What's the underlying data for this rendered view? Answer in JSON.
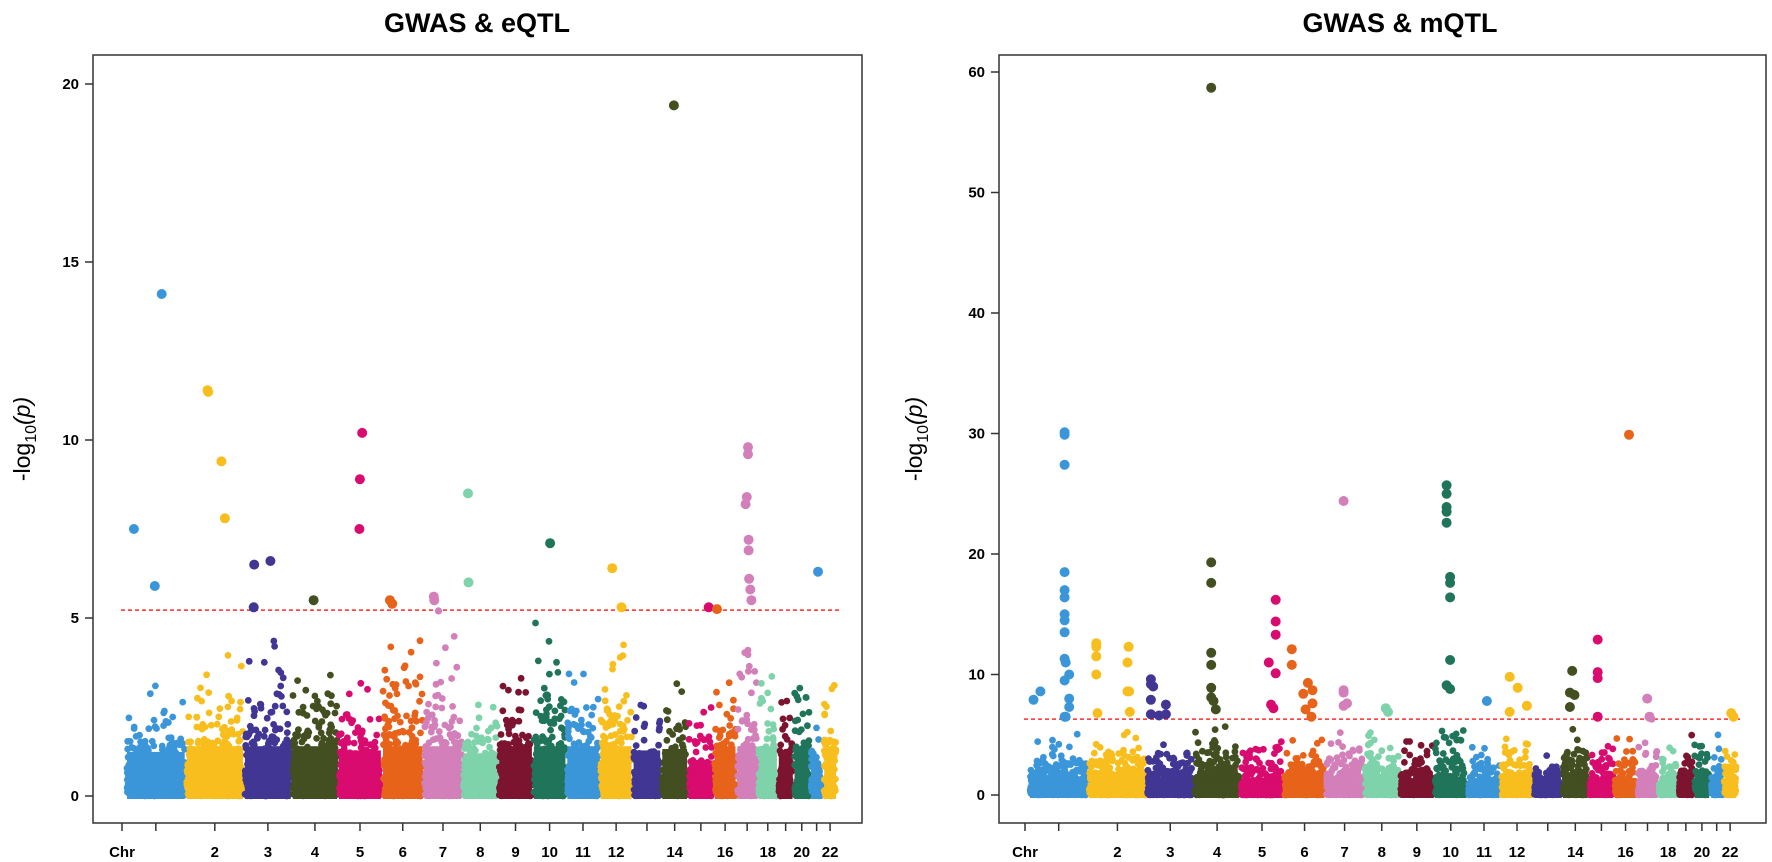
{
  "colors": [
    "#3b96d9",
    "#f7be1d",
    "#413693",
    "#434f20",
    "#d90b6f",
    "#e8631a",
    "#d37fba",
    "#7fd3aa",
    "#7c1430",
    "#1f7459"
  ],
  "threshold_color": "#ff2a2a",
  "chart_data": [
    {
      "type": "scatter",
      "subtype": "manhattan",
      "title": "GWAS & eQTL",
      "ylabel_main": "-log",
      "ylabel_sub": "10",
      "ylabel_tail": "(p)",
      "xlabel": "Chr",
      "ylim": [
        0,
        20.8
      ],
      "yticks": [
        "0",
        "5",
        "10",
        "15",
        "20"
      ],
      "ytick_values": [
        0,
        5,
        10,
        15,
        20
      ],
      "xtick_labels": [
        "Chr",
        "",
        "2",
        "3",
        "4",
        "5",
        "6",
        "7",
        "8",
        "9",
        "10",
        "11",
        "12",
        "",
        "14",
        "",
        "16",
        "",
        "18",
        "",
        "20",
        "",
        "22"
      ],
      "threshold": 5.22,
      "background_max": [
        3.1,
        4.0,
        4.4,
        3.9,
        3.2,
        4.6,
        4.6,
        3.0,
        3.9,
        4.9,
        3.9,
        5.0,
        3.2,
        3.3,
        2.5,
        4.4,
        4.6,
        3.7,
        3.0,
        4.2,
        2.2,
        3.9
      ],
      "peaks": [
        [
          1,
          30,
          7.5
        ],
        [
          1,
          150,
          14.1
        ],
        [
          1,
          120,
          5.9
        ],
        [
          2,
          90,
          11.4
        ],
        [
          2,
          93,
          11.35
        ],
        [
          2,
          150,
          9.4
        ],
        [
          2,
          165,
          7.8
        ],
        [
          3,
          40,
          6.5
        ],
        [
          3,
          38,
          5.3
        ],
        [
          3,
          110,
          6.6
        ],
        [
          4,
          90,
          5.5
        ],
        [
          5,
          100,
          10.2
        ],
        [
          5,
          90,
          8.9
        ],
        [
          5,
          88,
          7.5
        ],
        [
          6,
          30,
          5.5
        ],
        [
          6,
          40,
          5.4
        ],
        [
          7,
          40,
          5.6
        ],
        [
          7,
          42,
          5.5
        ],
        [
          7,
          60,
          5.2
        ],
        [
          8,
          20,
          8.5
        ],
        [
          8,
          22,
          6.0
        ],
        [
          10,
          70,
          7.1
        ],
        [
          12,
          50,
          6.4
        ],
        [
          12,
          90,
          5.3
        ],
        [
          14,
          50,
          19.4
        ],
        [
          15,
          85,
          5.3
        ],
        [
          16,
          10,
          5.25
        ],
        [
          17,
          45,
          9.8
        ],
        [
          17,
          45,
          9.6
        ],
        [
          17,
          40,
          8.4
        ],
        [
          17,
          35,
          8.2
        ],
        [
          17,
          48,
          7.2
        ],
        [
          17,
          48,
          6.9
        ],
        [
          17,
          50,
          6.1
        ],
        [
          17,
          55,
          5.8
        ],
        [
          17,
          60,
          5.5
        ],
        [
          21,
          30,
          6.3
        ]
      ]
    },
    {
      "type": "scatter",
      "subtype": "manhattan",
      "title": "GWAS & mQTL",
      "ylabel_main": "-log",
      "ylabel_sub": "10",
      "ylabel_tail": "(p)",
      "xlabel": "Chr",
      "ylim": [
        0,
        61.5
      ],
      "yticks": [
        "0",
        "10",
        "20",
        "30",
        "40",
        "50",
        "60"
      ],
      "ytick_values": [
        0,
        10,
        20,
        30,
        40,
        50,
        60
      ],
      "xtick_labels": [
        "Chr",
        "",
        "2",
        "3",
        "4",
        "5",
        "6",
        "7",
        "8",
        "9",
        "10",
        "11",
        "12",
        "",
        "14",
        "",
        "16",
        "",
        "18",
        "",
        "20",
        "",
        "22"
      ],
      "threshold": 6.3,
      "background_max": [
        5.5,
        5.5,
        5.0,
        6.0,
        4.5,
        5.0,
        5.5,
        5.3,
        5.5,
        5.5,
        4.0,
        5.5,
        3.7,
        5.5,
        4.5,
        5.5,
        5.5,
        4.1,
        5.0,
        5.1,
        5.3,
        5.5
      ],
      "peaks": [
        [
          1,
          15,
          7.9
        ],
        [
          1,
          45,
          8.6
        ],
        [
          1,
          150,
          30.1
        ],
        [
          1,
          150,
          29.9
        ],
        [
          1,
          150,
          27.4
        ],
        [
          1,
          150,
          18.5
        ],
        [
          1,
          150,
          17.0
        ],
        [
          1,
          150,
          16.4
        ],
        [
          1,
          150,
          15.0
        ],
        [
          1,
          150,
          14.5
        ],
        [
          1,
          150,
          13.5
        ],
        [
          1,
          150,
          11.3
        ],
        [
          1,
          155,
          11.0
        ],
        [
          1,
          170,
          10.0
        ],
        [
          1,
          150,
          9.5
        ],
        [
          1,
          170,
          8.0
        ],
        [
          1,
          170,
          7.3
        ],
        [
          1,
          150,
          6.5
        ],
        [
          1,
          155,
          6.5
        ],
        [
          2,
          30,
          12.6
        ],
        [
          2,
          30,
          12.3
        ],
        [
          2,
          30,
          11.5
        ],
        [
          2,
          30,
          10.0
        ],
        [
          2,
          35,
          6.8
        ],
        [
          2,
          170,
          12.3
        ],
        [
          2,
          165,
          11.0
        ],
        [
          2,
          165,
          8.6
        ],
        [
          2,
          172,
          8.6
        ],
        [
          2,
          175,
          6.9
        ],
        [
          3,
          15,
          9.6
        ],
        [
          3,
          15,
          9.2
        ],
        [
          3,
          15,
          7.9
        ],
        [
          3,
          25,
          9.0
        ],
        [
          3,
          15,
          6.7
        ],
        [
          3,
          50,
          6.6
        ],
        [
          3,
          80,
          7.5
        ],
        [
          3,
          80,
          6.7
        ],
        [
          4,
          70,
          58.7
        ],
        [
          4,
          70,
          19.3
        ],
        [
          4,
          70,
          17.6
        ],
        [
          4,
          70,
          11.8
        ],
        [
          4,
          70,
          10.8
        ],
        [
          4,
          70,
          8.9
        ],
        [
          4,
          70,
          8.1
        ],
        [
          4,
          80,
          7.8
        ],
        [
          4,
          90,
          7.1
        ],
        [
          5,
          150,
          16.2
        ],
        [
          5,
          150,
          14.4
        ],
        [
          5,
          150,
          13.3
        ],
        [
          5,
          120,
          11.0
        ],
        [
          5,
          150,
          10.1
        ],
        [
          5,
          130,
          7.5
        ],
        [
          5,
          140,
          7.2
        ],
        [
          6,
          30,
          12.1
        ],
        [
          6,
          30,
          10.8
        ],
        [
          6,
          100,
          9.3
        ],
        [
          6,
          80,
          8.4
        ],
        [
          6,
          120,
          8.7
        ],
        [
          6,
          120,
          7.6
        ],
        [
          6,
          90,
          7.1
        ],
        [
          6,
          115,
          6.5
        ],
        [
          7,
          75,
          24.4
        ],
        [
          7,
          75,
          8.7
        ],
        [
          7,
          75,
          8.5
        ],
        [
          7,
          90,
          7.6
        ],
        [
          7,
          75,
          7.4
        ],
        [
          8,
          90,
          7.2
        ],
        [
          8,
          100,
          6.9
        ],
        [
          10,
          50,
          25.7
        ],
        [
          10,
          50,
          25.0
        ],
        [
          10,
          50,
          23.9
        ],
        [
          10,
          50,
          23.5
        ],
        [
          10,
          50,
          22.6
        ],
        [
          10,
          65,
          18.1
        ],
        [
          10,
          65,
          17.6
        ],
        [
          10,
          65,
          16.4
        ],
        [
          10,
          65,
          11.2
        ],
        [
          10,
          50,
          9.1
        ],
        [
          10,
          65,
          8.8
        ],
        [
          11,
          80,
          7.8
        ],
        [
          12,
          35,
          9.8
        ],
        [
          12,
          70,
          8.9
        ],
        [
          12,
          110,
          7.4
        ],
        [
          12,
          35,
          6.9
        ],
        [
          14,
          40,
          10.3
        ],
        [
          14,
          30,
          8.5
        ],
        [
          14,
          50,
          8.3
        ],
        [
          14,
          30,
          7.3
        ],
        [
          15,
          35,
          12.9
        ],
        [
          15,
          35,
          10.2
        ],
        [
          15,
          35,
          9.7
        ],
        [
          15,
          35,
          6.5
        ],
        [
          16,
          60,
          29.9
        ],
        [
          17,
          40,
          8.0
        ],
        [
          17,
          50,
          6.5
        ],
        [
          17,
          60,
          6.3
        ],
        [
          22,
          30,
          6.8
        ],
        [
          22,
          40,
          6.5
        ]
      ]
    }
  ]
}
